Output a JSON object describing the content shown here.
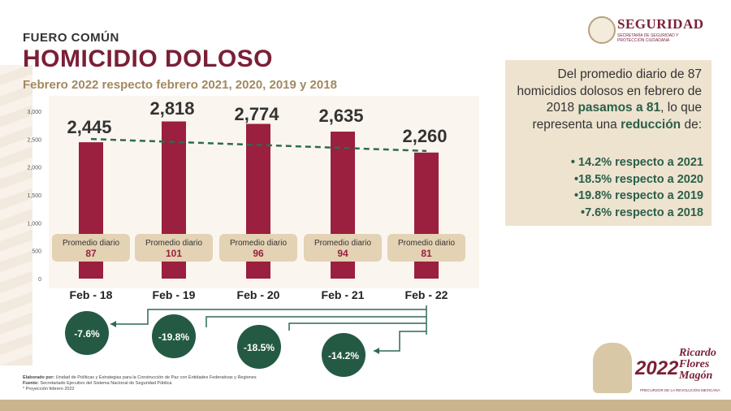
{
  "header": {
    "overline": "FUERO COMÚN",
    "title": "HOMICIDIO DOLOSO",
    "subtitle": "Febrero 2022 respecto febrero 2021, 2020, 2019 y 2018"
  },
  "logo": {
    "name": "SEGURIDAD",
    "subtext": "SECRETARÍA DE SEGURIDAD Y PROTECCIÓN CIUDADANA"
  },
  "chart_data": {
    "type": "bar",
    "categories": [
      "Feb - 18",
      "Feb - 19",
      "Feb - 20",
      "Feb - 21",
      "Feb - 22"
    ],
    "values": [
      2445,
      2818,
      2774,
      2635,
      2260
    ],
    "value_labels": [
      "2,445",
      "2,818",
      "2,774",
      "2,635",
      "2,260"
    ],
    "ylim": [
      0,
      3000
    ],
    "yticks": [
      "0",
      "500",
      "1,000",
      "1,500",
      "2,000",
      "2,500",
      "3,000"
    ],
    "bar_color": "#9b1f3f",
    "trend_line": {
      "from": 2445,
      "to": 2260,
      "style": "dashed",
      "color": "#2f6a52"
    },
    "daily_label": "Promedio diario",
    "daily_averages": [
      "87",
      "101",
      "96",
      "94",
      "81"
    ],
    "comparisons": [
      {
        "vs": "Feb - 18",
        "text": "-7.6%"
      },
      {
        "vs": "Feb - 19",
        "text": "-19.8%"
      },
      {
        "vs": "Feb - 20",
        "text": "-18.5%"
      },
      {
        "vs": "Feb - 21",
        "text": "-14.2%"
      }
    ],
    "comparison_color": "#245a44"
  },
  "summary": {
    "text_1": "Del promedio diario de 87 homicidios dolosos en febrero de 2018 ",
    "highlight_1": "pasamos a 81",
    "text_2": ", lo que representa una ",
    "highlight_2": "reducción",
    "text_3": " de:",
    "bullets": [
      "• 14.2% respecto a 2021",
      "•18.5% respecto a 2020",
      "•19.8% respecto a 2019",
      "•7.6% respecto a 2018"
    ]
  },
  "footnotes": {
    "elaborado_label": "Elaborado por:",
    "elaborado_text": " Unidad de Políticas y Estrategias para la Construcción de Paz con Entidades Federativas y Regiones",
    "fuente_label": "Fuente:",
    "fuente_text": " Secretariado Ejecutivo del Sistema Nacional de Seguridad Pública",
    "projection": "* Proyección febrero 2022"
  },
  "badge": {
    "year": "2022",
    "name": "Ricardo Flores Magón",
    "tagline": "PRECURSOR DE LA REVOLUCIÓN MEXICANA"
  }
}
